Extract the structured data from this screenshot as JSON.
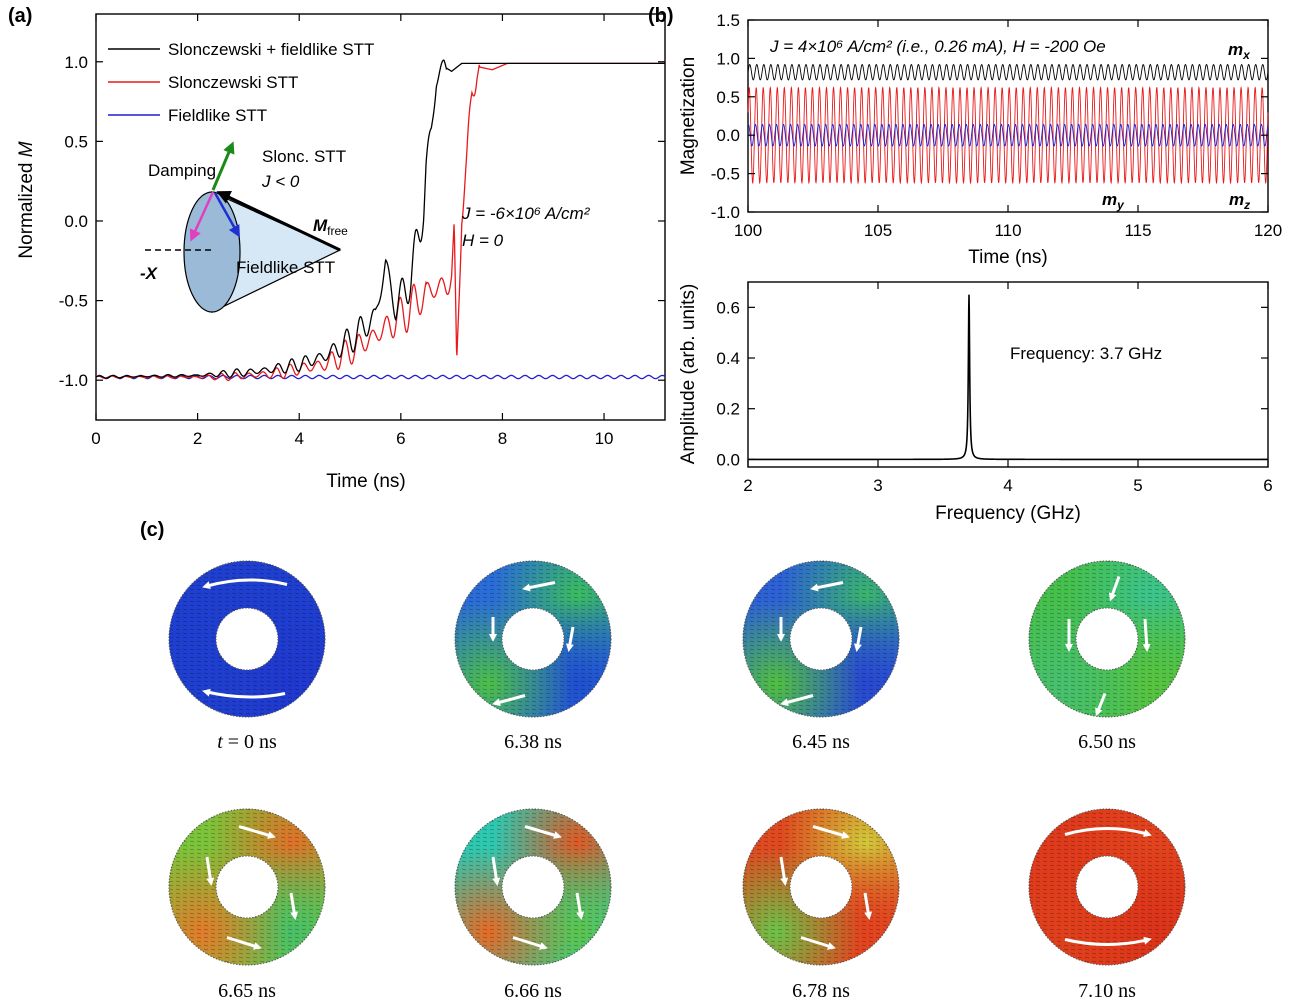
{
  "panel_labels": {
    "a": "(a)",
    "b": "(b)",
    "c": "(c)"
  },
  "chart_data": [
    {
      "id": "a",
      "type": "line",
      "xlabel": "Time (ns)",
      "ylabel_prefix": "Normalized ",
      "ylabel_var": "M",
      "xlim": [
        0,
        11.2
      ],
      "ylim": [
        -1.25,
        1.3
      ],
      "xticks": [
        0,
        2,
        4,
        6,
        8,
        10
      ],
      "yticks": [
        -1.0,
        -0.5,
        0.0,
        0.5,
        1.0
      ],
      "ytick_labels": [
        "-1.0",
        "-0.5",
        "0.0",
        "0.5",
        "1.0"
      ],
      "series": [
        {
          "name": "Slonczewski + fieldlike STT",
          "color": "#000000",
          "points": [
            [
              0,
              -0.98
            ],
            [
              2,
              -0.97
            ],
            [
              3,
              -0.95
            ],
            [
              3.5,
              -0.93
            ],
            [
              4,
              -0.9
            ],
            [
              4.5,
              -0.85
            ],
            [
              5,
              -0.75
            ],
            [
              5.5,
              -0.6
            ],
            [
              5.7,
              -0.27
            ],
            [
              5.9,
              -0.55
            ],
            [
              6.2,
              -0.35
            ],
            [
              6.38,
              -0.05
            ],
            [
              6.45,
              0.1
            ],
            [
              6.5,
              0.35
            ],
            [
              6.6,
              0.55
            ],
            [
              6.7,
              0.9
            ],
            [
              6.85,
              0.97
            ],
            [
              7.0,
              0.94
            ],
            [
              7.2,
              0.99
            ],
            [
              11.2,
              0.99
            ]
          ]
        },
        {
          "name": "Slonczewski STT",
          "color": "#e8191b",
          "points": [
            [
              0,
              -0.98
            ],
            [
              2.5,
              -0.98
            ],
            [
              3.5,
              -0.96
            ],
            [
              4.5,
              -0.9
            ],
            [
              5.0,
              -0.82
            ],
            [
              5.5,
              -0.72
            ],
            [
              6.0,
              -0.6
            ],
            [
              6.5,
              -0.45
            ],
            [
              6.9,
              -0.4
            ],
            [
              7.0,
              -0.35
            ],
            [
              7.05,
              -0.1
            ],
            [
              7.1,
              -0.95
            ],
            [
              7.2,
              0.1
            ],
            [
              7.3,
              0.35
            ],
            [
              7.4,
              0.8
            ],
            [
              7.5,
              0.97
            ],
            [
              7.8,
              0.95
            ],
            [
              8.1,
              0.99
            ],
            [
              11.2,
              0.99
            ]
          ]
        },
        {
          "name": "Fieldlike STT",
          "color": "#1f1fd0",
          "points": [
            [
              0,
              -0.98
            ],
            [
              11.2,
              -0.98
            ]
          ]
        }
      ],
      "annotation_j": "J = -6×10⁶ A/cm²",
      "annotation_h": "H = 0",
      "inset": {
        "damping": "Damping",
        "slonc_line1": "Slonc. STT",
        "slonc_line2": "J < 0",
        "fieldlike": "Fieldlike STT",
        "mfree": "M",
        "mfree_sub": "free",
        "neg_x": "-X"
      }
    },
    {
      "id": "b1",
      "type": "line",
      "xlabel": "Time (ns)",
      "ylabel": "Magnetization",
      "xlim": [
        100,
        120
      ],
      "ylim": [
        -1.0,
        1.5
      ],
      "xticks": [
        100,
        105,
        110,
        115,
        120
      ],
      "yticks": [
        -1.0,
        -0.5,
        0.0,
        0.5,
        1.0,
        1.5
      ],
      "ytick_labels": [
        "-1.0",
        "-0.5",
        "0.0",
        "0.5",
        "1.0",
        "1.5"
      ],
      "frequency_ghz": 3.7,
      "series": [
        {
          "name": "m_x",
          "color": "#000000",
          "center": 0.82,
          "amplitude": 0.1
        },
        {
          "name": "m_y",
          "color": "#e8191b",
          "center": 0.0,
          "amplitude": 0.62
        },
        {
          "name": "m_z",
          "color": "#1f1fd0",
          "center": 0.0,
          "amplitude": 0.14
        }
      ],
      "annotation": "J = 4×10⁶ A/cm² (i.e., 0.26 mA), H = -200 Oe",
      "labels": {
        "mx": "m",
        "mx_sub": "x",
        "my": "m",
        "my_sub": "y",
        "mz": "m",
        "mz_sub": "z"
      }
    },
    {
      "id": "b2",
      "type": "line",
      "xlabel": "Frequency (GHz)",
      "ylabel": "Amplitude (arb. units)",
      "xlim": [
        2,
        6
      ],
      "ylim": [
        -0.03,
        0.7
      ],
      "xticks": [
        2,
        3,
        4,
        5,
        6
      ],
      "yticks": [
        0.0,
        0.2,
        0.4,
        0.6
      ],
      "ytick_labels": [
        "0.0",
        "0.2",
        "0.4",
        "0.6"
      ],
      "peak_frequency": 3.7,
      "peak_amplitude": 0.65,
      "annotation": "Frequency: 3.7 GHz"
    }
  ],
  "snapshots": [
    {
      "caption_var": "t",
      "caption": " = 0 ns",
      "colors": [
        "#1f3fd0",
        "#1f3fd0",
        "#2038d0",
        "#1f3fd0"
      ]
    },
    {
      "caption": "6.38 ns",
      "colors": [
        "#2a6cd8",
        "#3bbd60",
        "#2050d0",
        "#4cc048"
      ]
    },
    {
      "caption": "6.45 ns",
      "colors": [
        "#2d62d6",
        "#3ab56e",
        "#2848d0",
        "#52c040"
      ]
    },
    {
      "caption": "6.50 ns",
      "colors": [
        "#46c04c",
        "#3cc48e",
        "#58c440",
        "#48c070"
      ]
    },
    {
      "caption": "6.65 ns",
      "colors": [
        "#7cc43a",
        "#e07028",
        "#48c068",
        "#e47a2a"
      ]
    },
    {
      "caption": "6.66 ns",
      "colors": [
        "#2ec8b0",
        "#e05a24",
        "#5ec44e",
        "#e86a24"
      ]
    },
    {
      "caption": "6.78 ns",
      "colors": [
        "#e04a20",
        "#d2c83a",
        "#e34420",
        "#6cc448"
      ]
    },
    {
      "caption": "7.10 ns",
      "colors": [
        "#e03a1c",
        "#e3441e",
        "#dc341a",
        "#e0401c"
      ]
    }
  ]
}
